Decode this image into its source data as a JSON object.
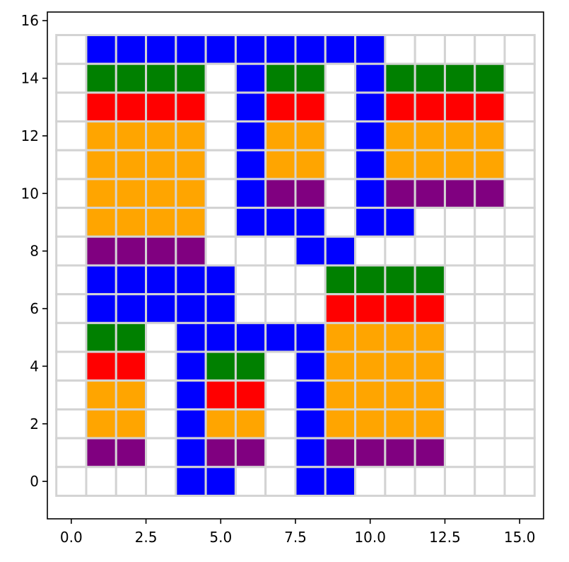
{
  "chart_data": {
    "type": "heatmap",
    "title": "",
    "xlabel": "",
    "ylabel": "",
    "xlim": [
      -0.8,
      15.8
    ],
    "ylim": [
      -1.3,
      16.3
    ],
    "grid": true,
    "x_ticks": [
      {
        "value": 0,
        "label": "0.0"
      },
      {
        "value": 2.5,
        "label": "2.5"
      },
      {
        "value": 5,
        "label": "5.0"
      },
      {
        "value": 7.5,
        "label": "7.5"
      },
      {
        "value": 10,
        "label": "10.0"
      },
      {
        "value": 12.5,
        "label": "12.5"
      },
      {
        "value": 15,
        "label": "15.0"
      }
    ],
    "y_ticks": [
      {
        "value": 0,
        "label": "0"
      },
      {
        "value": 2,
        "label": "2"
      },
      {
        "value": 4,
        "label": "4"
      },
      {
        "value": 6,
        "label": "6"
      },
      {
        "value": 8,
        "label": "8"
      },
      {
        "value": 10,
        "label": "10"
      },
      {
        "value": 12,
        "label": "12"
      },
      {
        "value": 14,
        "label": "14"
      },
      {
        "value": 16,
        "label": "16"
      }
    ],
    "color_key": {
      "W": "#ffffff",
      "B": "#0000ff",
      "G": "#008000",
      "R": "#ff0000",
      "O": "#ffa500",
      "P": "#800080"
    },
    "grid_color": "#d3d3d3",
    "cells_top_to_bottom": [
      "WBBBBBBBBBBWWWWW",
      "WGGGGWBGGWBGGGGW",
      "WRRRRWBRRWBRRRRW",
      "WOOOOWBOOWBOOOOW",
      "WOOOOWBOOWBOOOOW",
      "WOOOOWBPPWBPPPPW",
      "WOOOOWBBBWBBWWWW",
      "WPPPPWWWBBWWWWWW",
      "WBBBBBWWWGGGGWWW",
      "WBBBBBWWWRRRRWWW",
      "WGGWBBBBBOOOOWWW",
      "WRRWBGGWBOOOOWWW",
      "WOOWBRRWBOOOOWWW",
      "WOOWBOOWBOOOOWWW",
      "WPPWBPPWBPPPPWWW",
      "WWWWBBWWBBWWWWWW"
    ]
  }
}
